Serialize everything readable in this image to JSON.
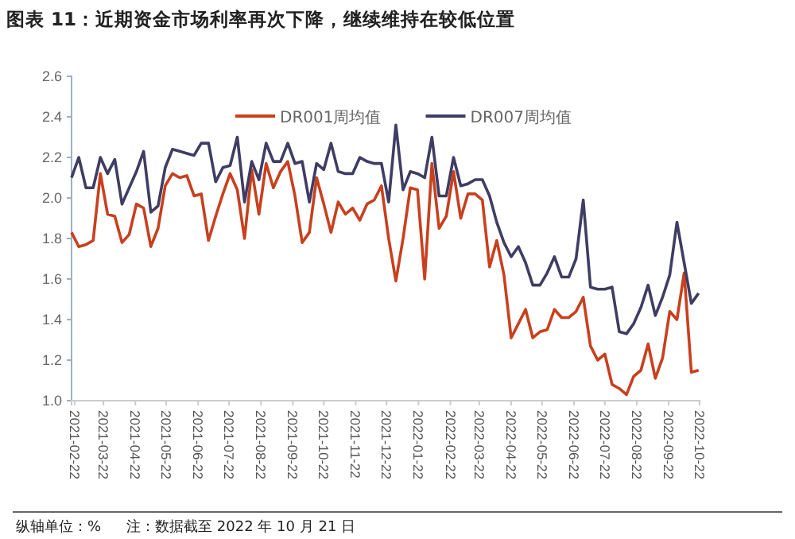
{
  "chart_data": {
    "type": "line",
    "title": "图表 11：近期资金市场利率再次下降，继续维持在较低位置",
    "x": [
      "2021-02-19",
      "2021-02-26",
      "2021-03-05",
      "2021-03-12",
      "2021-03-19",
      "2021-03-26",
      "2021-04-02",
      "2021-04-09",
      "2021-04-16",
      "2021-04-23",
      "2021-04-30",
      "2021-05-07",
      "2021-05-14",
      "2021-05-21",
      "2021-05-28",
      "2021-06-04",
      "2021-06-11",
      "2021-06-18",
      "2021-06-25",
      "2021-07-02",
      "2021-07-09",
      "2021-07-16",
      "2021-07-23",
      "2021-07-30",
      "2021-08-06",
      "2021-08-13",
      "2021-08-20",
      "2021-08-27",
      "2021-09-03",
      "2021-09-10",
      "2021-09-17",
      "2021-09-24",
      "2021-10-01",
      "2021-10-08",
      "2021-10-15",
      "2021-10-22",
      "2021-10-29",
      "2021-11-05",
      "2021-11-12",
      "2021-11-19",
      "2021-11-26",
      "2021-12-03",
      "2021-12-10",
      "2021-12-17",
      "2021-12-24",
      "2021-12-31",
      "2022-01-07",
      "2022-01-14",
      "2022-01-21",
      "2022-01-28",
      "2022-02-04",
      "2022-02-11",
      "2022-02-18",
      "2022-02-25",
      "2022-03-04",
      "2022-03-11",
      "2022-03-18",
      "2022-03-25",
      "2022-04-01",
      "2022-04-08",
      "2022-04-15",
      "2022-04-22",
      "2022-04-29",
      "2022-05-06",
      "2022-05-13",
      "2022-05-20",
      "2022-05-27",
      "2022-06-03",
      "2022-06-10",
      "2022-06-17",
      "2022-06-24",
      "2022-07-01",
      "2022-07-08",
      "2022-07-15",
      "2022-07-22",
      "2022-07-29",
      "2022-08-05",
      "2022-08-12",
      "2022-08-19",
      "2022-08-26",
      "2022-09-02",
      "2022-09-09",
      "2022-09-16",
      "2022-09-23",
      "2022-09-30",
      "2022-10-07",
      "2022-10-14",
      "2022-10-21"
    ],
    "series": [
      {
        "name": "DR001周均值",
        "color": "#c8401e",
        "values": [
          1.83,
          1.76,
          1.77,
          1.79,
          2.12,
          1.92,
          1.91,
          1.78,
          1.82,
          1.97,
          1.95,
          1.76,
          1.85,
          2.06,
          2.12,
          2.1,
          2.11,
          2.01,
          2.02,
          1.79,
          1.91,
          2.02,
          2.12,
          2.04,
          1.8,
          2.14,
          1.92,
          2.17,
          2.05,
          2.13,
          2.18,
          2.01,
          1.78,
          1.83,
          2.1,
          1.97,
          1.83,
          1.98,
          1.92,
          1.95,
          1.89,
          1.97,
          1.99,
          2.06,
          1.8,
          1.59,
          1.8,
          2.05,
          2.04,
          1.6,
          2.17,
          1.85,
          1.91,
          2.13,
          1.9,
          2.02,
          2.02,
          1.99,
          1.66,
          1.79,
          1.62,
          1.31,
          1.38,
          1.45,
          1.31,
          1.34,
          1.35,
          1.45,
          1.41,
          1.41,
          1.44,
          1.51,
          1.27,
          1.2,
          1.23,
          1.08,
          1.06,
          1.03,
          1.12,
          1.15,
          1.28,
          1.11,
          1.21,
          1.44,
          1.4,
          1.63,
          1.14,
          1.15
        ]
      },
      {
        "name": "DR007周均值",
        "color": "#3f3d63",
        "values": [
          2.1,
          2.2,
          2.05,
          2.05,
          2.2,
          2.12,
          2.19,
          1.97,
          2.05,
          2.13,
          2.23,
          1.93,
          1.96,
          2.15,
          2.24,
          2.23,
          2.22,
          2.21,
          2.27,
          2.27,
          2.08,
          2.15,
          2.16,
          2.3,
          1.98,
          2.18,
          2.09,
          2.27,
          2.18,
          2.18,
          2.27,
          2.17,
          2.18,
          1.98,
          2.17,
          2.14,
          2.27,
          2.13,
          2.12,
          2.12,
          2.2,
          2.18,
          2.17,
          2.17,
          1.98,
          2.36,
          2.04,
          2.13,
          2.12,
          2.1,
          2.3,
          2.01,
          2.01,
          2.2,
          2.06,
          2.07,
          2.09,
          2.09,
          2.01,
          1.88,
          1.78,
          1.71,
          1.76,
          1.68,
          1.57,
          1.57,
          1.63,
          1.71,
          1.61,
          1.61,
          1.7,
          1.99,
          1.56,
          1.55,
          1.55,
          1.56,
          1.34,
          1.33,
          1.38,
          1.46,
          1.57,
          1.42,
          1.51,
          1.62,
          1.88,
          1.68,
          1.48,
          1.53
        ]
      }
    ],
    "xlim": [
      "2021-02-19",
      "2022-10-22"
    ],
    "xticks": [
      "2021-02-22",
      "2021-03-22",
      "2021-04-22",
      "2021-05-22",
      "2021-06-22",
      "2021-07-22",
      "2021-08-22",
      "2021-09-22",
      "2021-10-22",
      "2021-11-22",
      "2021-12-22",
      "2022-01-22",
      "2022-02-22",
      "2022-03-22",
      "2022-04-22",
      "2022-05-22",
      "2022-06-22",
      "2022-07-22",
      "2022-08-22",
      "2022-09-22",
      "2022-10-22"
    ],
    "ylim": [
      1.0,
      2.6
    ],
    "yticks": [
      {
        "value": 1.0,
        "label": "1.0"
      },
      {
        "value": 1.2,
        "label": "1.2"
      },
      {
        "value": 1.4,
        "label": "1.4"
      },
      {
        "value": 1.6,
        "label": "1.6"
      },
      {
        "value": 1.8,
        "label": "1.8"
      },
      {
        "value": 2.0,
        "label": "2.0"
      },
      {
        "value": 2.2,
        "label": "2.2"
      },
      {
        "value": 2.4,
        "label": "2.4"
      },
      {
        "value": 2.6,
        "label": "2.6"
      }
    ],
    "grid": false,
    "legend": "top right",
    "marker": "none",
    "line_style": "solid",
    "annotations": [
      "纵轴单位：%",
      "注：数据截至 2022 年 10 月 21 日"
    ]
  }
}
